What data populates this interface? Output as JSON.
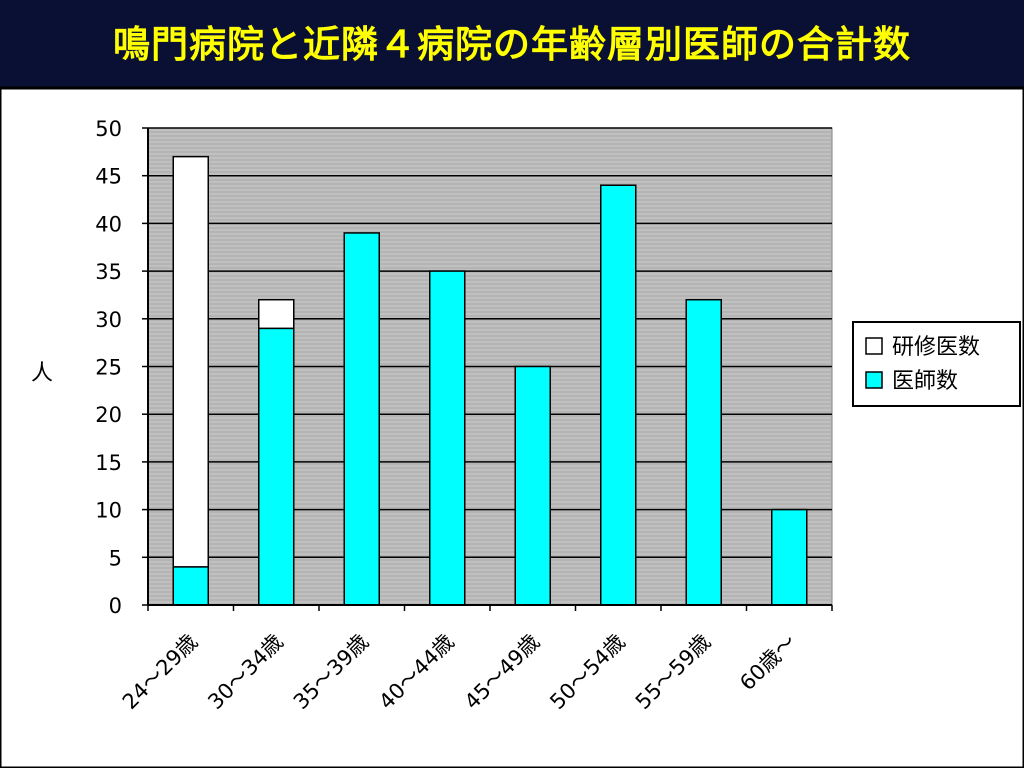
{
  "slide": {
    "title": "鳴門病院と近隣４病院の年齢層別医師の合計数"
  },
  "chart_data": {
    "type": "bar",
    "stacked": true,
    "categories": [
      "24～29歳",
      "30～34歳",
      "35～39歳",
      "40～44歳",
      "45～49歳",
      "50～54歳",
      "55～59歳",
      "60歳～"
    ],
    "series": [
      {
        "name": "医師数",
        "color": "#00ffff",
        "values": [
          4,
          29,
          39,
          35,
          25,
          44,
          32,
          10
        ]
      },
      {
        "name": "研修医数",
        "color": "#ffffff",
        "values": [
          43,
          3,
          0,
          0,
          0,
          0,
          0,
          0
        ]
      }
    ],
    "legend_order": [
      "研修医数",
      "医師数"
    ],
    "ylabel": "人",
    "ylim": [
      0,
      50
    ],
    "yticks": [
      0,
      5,
      10,
      15,
      20,
      25,
      30,
      35,
      40,
      45,
      50
    ],
    "grid": true,
    "legend_position": "right",
    "plot_background": "#c0c0c0"
  }
}
